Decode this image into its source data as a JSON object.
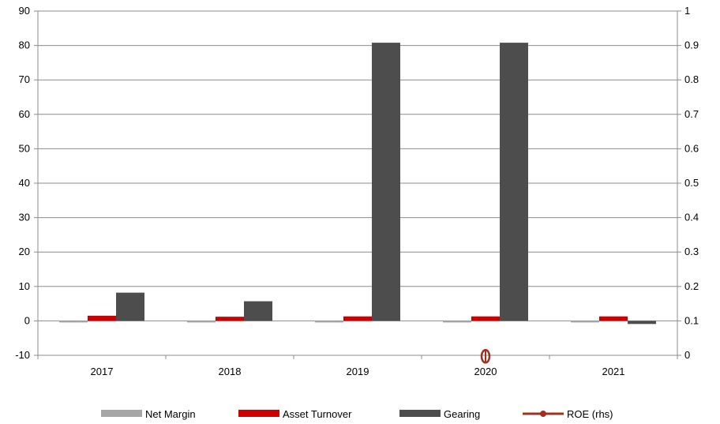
{
  "chart_data": {
    "type": "bar",
    "title": "",
    "xlabel": "",
    "ylabel": "",
    "ylim": [
      -10,
      90
    ],
    "y_ticks": [
      -10,
      0,
      10,
      20,
      30,
      40,
      50,
      60,
      70,
      80,
      90
    ],
    "y2lim": [
      0,
      1
    ],
    "y2_ticks": [
      0,
      0.1,
      0.2,
      0.3,
      0.4,
      0.5,
      0.6,
      0.7,
      0.8,
      0.9,
      1
    ],
    "categories": [
      "2017",
      "2018",
      "2019",
      "2020",
      "2021"
    ],
    "grid": true,
    "legend_position": "bottom",
    "series": [
      {
        "name": "Net Margin",
        "type": "bar",
        "axis": "left",
        "color": "#a6a6a6",
        "values": [
          -0.3,
          -0.2,
          -0.4,
          -0.4,
          -0.2
        ]
      },
      {
        "name": "Asset Turnover",
        "type": "bar",
        "axis": "left",
        "color": "#cc0000",
        "values": [
          1.5,
          1.2,
          1.3,
          1.3,
          1.3
        ]
      },
      {
        "name": "Gearing",
        "type": "bar",
        "axis": "left",
        "color": "#4d4d4d",
        "values": [
          8.2,
          5.7,
          80.8,
          80.8,
          -0.9
        ]
      },
      {
        "name": "ROE (rhs)",
        "type": "line",
        "axis": "right",
        "color": "#a0301f",
        "values": [
          null,
          null,
          null,
          -0.003,
          null
        ]
      }
    ]
  }
}
